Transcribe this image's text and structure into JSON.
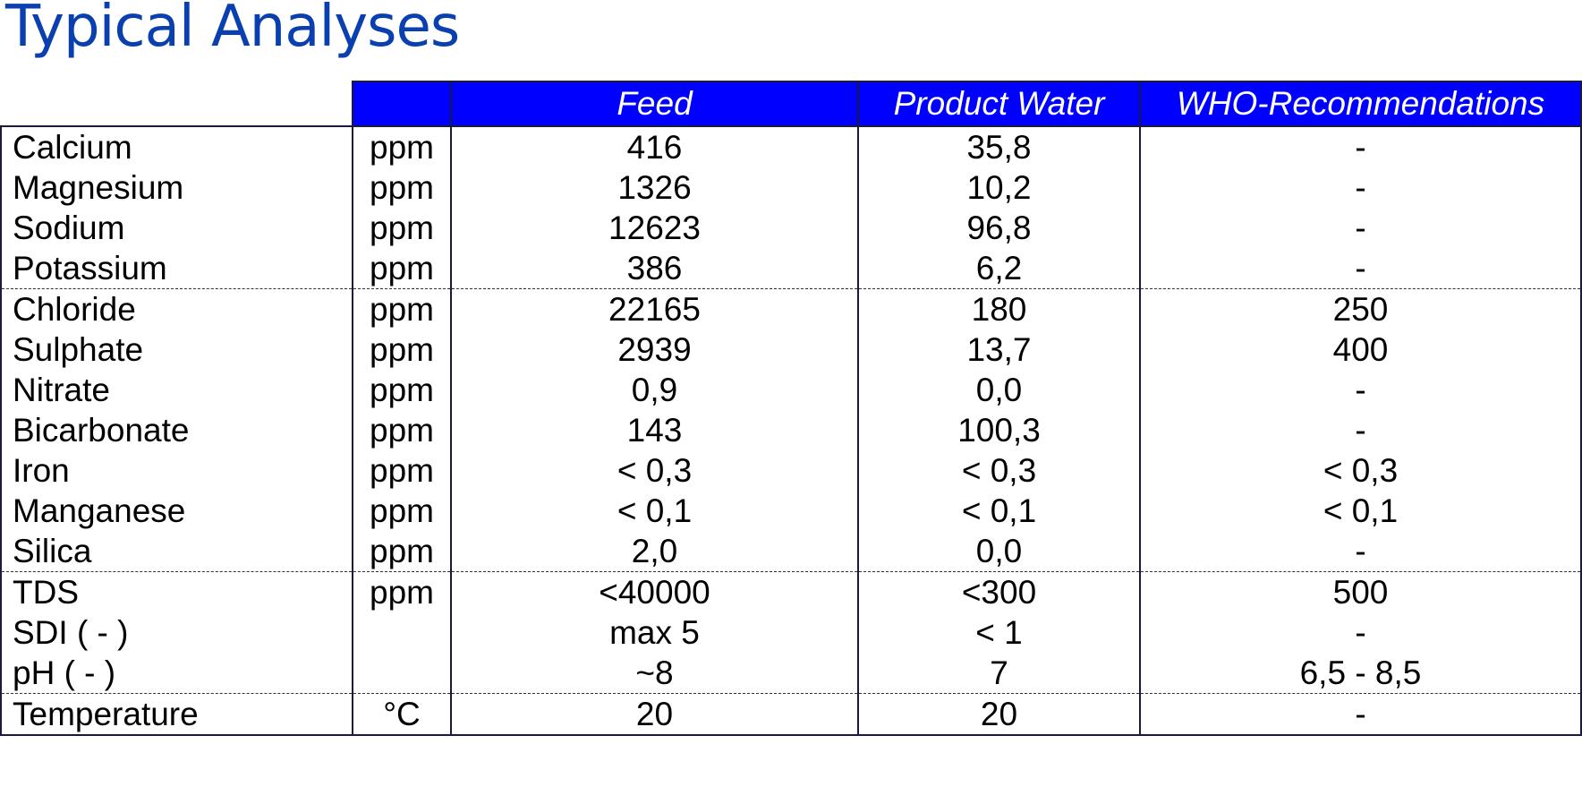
{
  "title": "Typical Analyses",
  "table": {
    "headers": {
      "parameter": "",
      "unit": "",
      "feed": "Feed",
      "product_water": "Product Water",
      "who": "WHO-Recommendations"
    },
    "rows": [
      {
        "parameter": "Calcium",
        "unit": "ppm",
        "feed": "416",
        "product": "35,8",
        "who": "-"
      },
      {
        "parameter": "Magnesium",
        "unit": "ppm",
        "feed": "1326",
        "product": "10,2",
        "who": "-"
      },
      {
        "parameter": "Sodium",
        "unit": "ppm",
        "feed": "12623",
        "product": "96,8",
        "who": "-"
      },
      {
        "parameter": "Potassium",
        "unit": "ppm",
        "feed": "386",
        "product": "6,2",
        "who": "-"
      },
      {
        "parameter": "Chloride",
        "unit": "ppm",
        "feed": "22165",
        "product": "180",
        "who": "250"
      },
      {
        "parameter": "Sulphate",
        "unit": "ppm",
        "feed": "2939",
        "product": "13,7",
        "who": "400"
      },
      {
        "parameter": "Nitrate",
        "unit": "ppm",
        "feed": "0,9",
        "product": "0,0",
        "who": "-"
      },
      {
        "parameter": "Bicarbonate",
        "unit": "ppm",
        "feed": "143",
        "product": "100,3",
        "who": "-"
      },
      {
        "parameter": "Iron",
        "unit": "ppm",
        "feed": "< 0,3",
        "product": "< 0,3",
        "who": "< 0,3"
      },
      {
        "parameter": "Manganese",
        "unit": "ppm",
        "feed": "< 0,1",
        "product": "< 0,1",
        "who": "< 0,1"
      },
      {
        "parameter": "Silica",
        "unit": "ppm",
        "feed": "2,0",
        "product": "0,0",
        "who": "-"
      },
      {
        "parameter": "TDS",
        "unit": "ppm",
        "feed": "<40000",
        "product": "<300",
        "who": "500"
      },
      {
        "parameter": "SDI ( - )",
        "unit": "",
        "feed": "max 5",
        "product": "< 1",
        "who": "-"
      },
      {
        "parameter": "pH  ( - )",
        "unit": "",
        "feed": "~8",
        "product": "7",
        "who": "6,5 - 8,5"
      },
      {
        "parameter": "Temperature",
        "unit": "°C",
        "feed": "20",
        "product": "20",
        "who": "-"
      }
    ]
  },
  "colors": {
    "title": "#0a3fb0",
    "header_background": "#0000ff",
    "header_text": "#ffffff"
  }
}
